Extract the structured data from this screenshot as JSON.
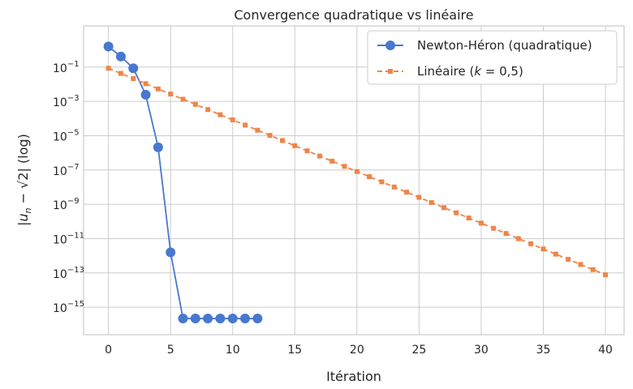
{
  "chart_data": {
    "type": "line",
    "title": "Convergence quadratique vs linéaire",
    "xlabel": "Itération",
    "ylabel_parts": [
      "|u",
      "n",
      " − √2| (log)"
    ],
    "xlim": [
      -2,
      41.5
    ],
    "ylim_log10": [
      -16.6,
      1.4
    ],
    "x_ticks": [
      0,
      5,
      10,
      15,
      20,
      25,
      30,
      35,
      40
    ],
    "y_ticks_exp": [
      -15,
      -13,
      -11,
      -9,
      -7,
      -5,
      -3,
      -1
    ],
    "y_tick_base": "10",
    "grid": true,
    "legend_position": "top-right",
    "series": [
      {
        "name": "Newton-Héron (quadratique)",
        "legend_main": "Newton-Héron (quadratique)",
        "color": "#4878cf",
        "style": "solid",
        "marker": "circle",
        "x": [
          0,
          1,
          2,
          3,
          4,
          5,
          6,
          7,
          8,
          9,
          10,
          11,
          12
        ],
        "y": [
          1.586,
          0.4142,
          0.0858,
          0.00245,
          2.12e-06,
          1.59e-12,
          2.2e-16,
          2.2e-16,
          2.2e-16,
          2.2e-16,
          2.2e-16,
          2.2e-16,
          2.2e-16
        ]
      },
      {
        "name": "Linéaire (k = 0,5)",
        "legend_main": "Linéaire (",
        "legend_var": "k",
        "legend_rest": " = 0,5)",
        "color": "#ee854a",
        "style": "dashed",
        "marker": "square",
        "x": [
          0,
          1,
          2,
          3,
          4,
          5,
          6,
          7,
          8,
          9,
          10,
          11,
          12,
          13,
          14,
          15,
          16,
          17,
          18,
          19,
          20,
          21,
          22,
          23,
          24,
          25,
          26,
          27,
          28,
          29,
          30,
          31,
          32,
          33,
          34,
          35,
          36,
          37,
          38,
          39,
          40
        ],
        "y_start": 0.0858,
        "ratio": 0.5
      }
    ]
  }
}
